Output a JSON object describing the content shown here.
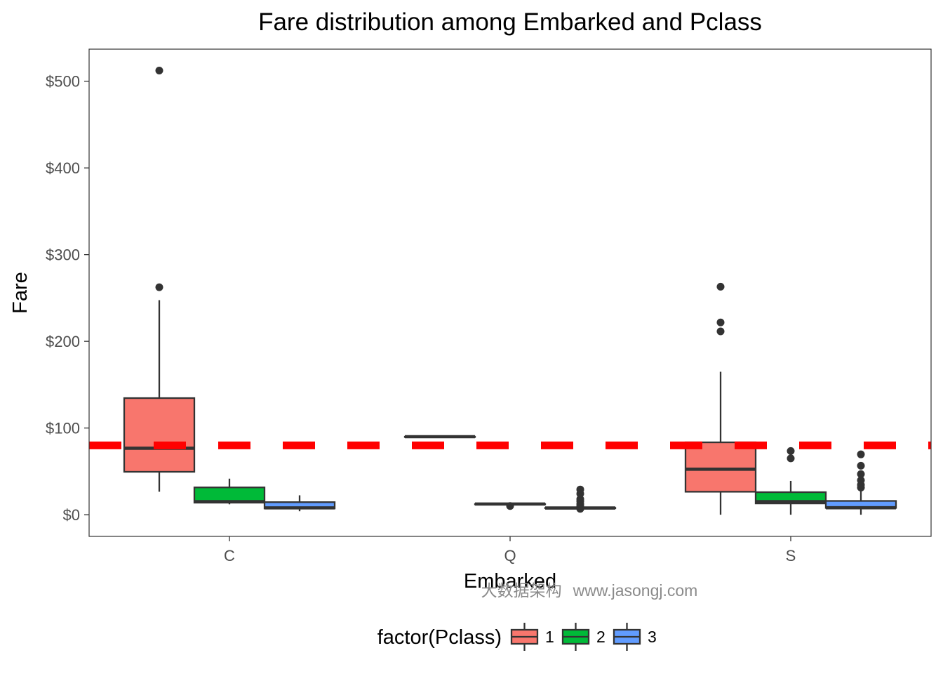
{
  "chart_data": {
    "type": "boxplot",
    "title": "Fare distribution among Embarked and Pclass",
    "xlabel": "Embarked",
    "ylabel": "Fare",
    "categories": [
      "C",
      "Q",
      "S"
    ],
    "ylim": [
      -25,
      537
    ],
    "yticks": [
      0,
      100,
      200,
      300,
      400,
      500
    ],
    "ytick_labels": [
      "$0",
      "$100",
      "$200",
      "$300",
      "$400",
      "$500"
    ],
    "grid": false,
    "legend": {
      "title": "factor(Pclass)",
      "position": "bottom",
      "entries": [
        "1",
        "2",
        "3"
      ]
    },
    "reference_line": {
      "y": 80,
      "style": "dashed",
      "color": "#ff0000"
    },
    "series": [
      {
        "name": "1",
        "color": "#f8766d",
        "boxes": [
          {
            "category": "C",
            "min": 26.5,
            "q1": 49.5,
            "median": 76.7,
            "q3": 134.5,
            "max": 247.5,
            "outliers": [
              262.4,
              512.3
            ]
          },
          {
            "category": "Q",
            "min": 90.0,
            "q1": 90.0,
            "median": 90.0,
            "q3": 90.0,
            "max": 90.0,
            "outliers": []
          },
          {
            "category": "S",
            "min": 0,
            "q1": 26.5,
            "median": 52.5,
            "q3": 83.5,
            "max": 164.9,
            "outliers": [
              211.5,
              221.8,
              263.0
            ]
          }
        ]
      },
      {
        "name": "2",
        "color": "#00ba38",
        "boxes": [
          {
            "category": "C",
            "min": 12.0,
            "q1": 13.9,
            "median": 15.0,
            "q3": 31.5,
            "max": 41.6,
            "outliers": []
          },
          {
            "category": "Q",
            "min": 12.35,
            "q1": 12.35,
            "median": 12.35,
            "q3": 12.35,
            "max": 12.35,
            "outliers": [
              10.0
            ]
          },
          {
            "category": "S",
            "min": 0,
            "q1": 13.0,
            "median": 15.0,
            "q3": 26.0,
            "max": 39.0,
            "outliers": [
              65.0,
              73.5
            ]
          }
        ]
      },
      {
        "name": "3",
        "color": "#619cff",
        "boxes": [
          {
            "category": "C",
            "min": 4.0,
            "q1": 7.2,
            "median": 7.9,
            "q3": 14.5,
            "max": 22.4,
            "outliers": []
          },
          {
            "category": "Q",
            "min": 6.75,
            "q1": 7.75,
            "median": 7.75,
            "q3": 7.9,
            "max": 8.2,
            "outliers": [
              6.8,
              10.0,
              12.3,
              15.5,
              18.0,
              24.2,
              29.1
            ]
          },
          {
            "category": "S",
            "min": 0,
            "q1": 7.85,
            "median": 8.05,
            "q3": 15.9,
            "max": 27.9,
            "outliers": [
              31.3,
              34.4,
              39.7,
              46.9,
              56.5,
              69.6
            ]
          }
        ]
      }
    ]
  },
  "watermark": {
    "cn": "大数据架构",
    "url": "www.jasongj.com"
  }
}
